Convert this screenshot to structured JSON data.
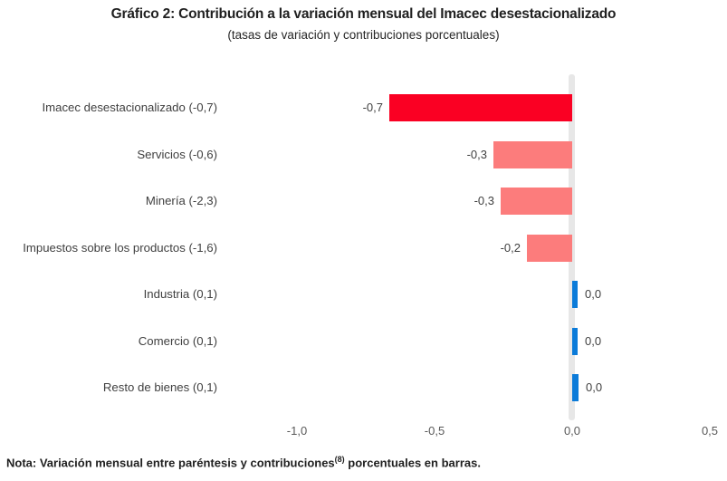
{
  "header": {
    "title": "Gráfico 2: Contribución a la variación mensual del Imacec desestacionalizado",
    "subtitle": "(tasas de variación y contribuciones porcentuales)"
  },
  "chart_data": {
    "type": "bar",
    "orientation": "horizontal",
    "title": "Gráfico 2: Contribución a la variación mensual del Imacec desestacionalizado",
    "subtitle": "(tasas de variación y contribuciones porcentuales)",
    "categories": [
      "Imacec desestacionalizado (-0,7)",
      "Servicios (-0,6)",
      "Minería (-2,3)",
      "Impuestos sobre los productos (-1,6)",
      "Industria (0,1)",
      "Comercio (0,1)",
      "Resto de bienes (0,1)"
    ],
    "values": [
      -0.7,
      -0.3,
      -0.3,
      -0.2,
      0.0,
      0.0,
      0.0
    ],
    "value_labels": [
      "-0,7",
      "-0,3",
      "-0,3",
      "-0,2",
      "0,0",
      "0,0",
      "0,0"
    ],
    "bar_visual_units": [
      -0.665,
      -0.285,
      -0.26,
      -0.165,
      0.02,
      0.02,
      0.023
    ],
    "colors": [
      "#fa0023",
      "#fc7c7c",
      "#fc7c7c",
      "#fc7c7c",
      "#0b7bd9",
      "#0b7bd9",
      "#0b7bd9"
    ],
    "xlim": [
      -1.0,
      0.5
    ],
    "x_ticks": [
      "-1,0",
      "-0,5",
      "0,0",
      "0,5"
    ],
    "x_tick_values": [
      -1.0,
      -0.5,
      0.0,
      0.5
    ],
    "grid": false,
    "legend": "none",
    "zero_axis_color": "#e7e7e7"
  },
  "note": {
    "prefix": "Nota: Variación mensual entre paréntesis y contribuciones",
    "superscript": "(8)",
    "suffix": " porcentuales en barras."
  }
}
